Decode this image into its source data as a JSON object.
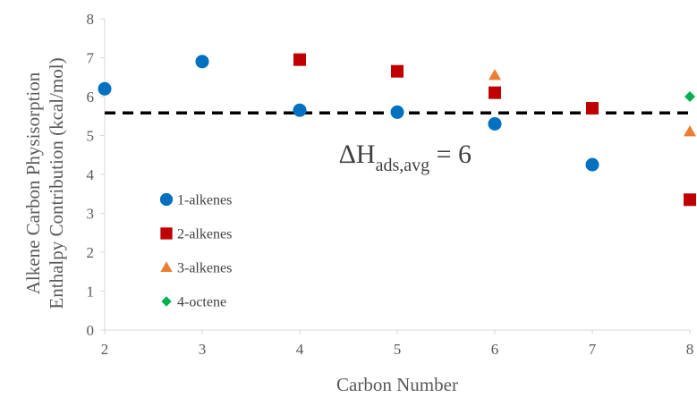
{
  "chart_data": {
    "type": "scatter",
    "title": "",
    "xlabel": "Carbon Number",
    "ylabel_lines": [
      "Alkene Carbon Physisorption",
      "Enthalpy Contribution (kcal/mol)"
    ],
    "xlim": [
      2,
      8
    ],
    "ylim": [
      0,
      8
    ],
    "xticks": [
      2,
      3,
      4,
      5,
      6,
      7,
      8
    ],
    "yticks": [
      0,
      1,
      2,
      3,
      4,
      5,
      6,
      7,
      8
    ],
    "grid": false,
    "legend_position": "left-bottom",
    "series": [
      {
        "name": "1-alkenes",
        "marker": "circle",
        "color": "#0070C0",
        "x": [
          2,
          3,
          4,
          5,
          6,
          7
        ],
        "y": [
          6.2,
          6.9,
          5.65,
          5.6,
          5.3,
          4.25
        ]
      },
      {
        "name": "2-alkenes",
        "marker": "square",
        "color": "#C00000",
        "x": [
          4,
          5,
          6,
          7,
          8
        ],
        "y": [
          6.95,
          6.65,
          6.1,
          5.7,
          3.35
        ]
      },
      {
        "name": "3-alkenes",
        "marker": "triangle",
        "color": "#ED7D31",
        "x": [
          6,
          8
        ],
        "y": [
          6.55,
          5.1
        ]
      },
      {
        "name": "4-octene",
        "marker": "diamond",
        "color": "#00B050",
        "x": [
          8
        ],
        "y": [
          6.0
        ]
      }
    ],
    "reference_line": {
      "y": 5.58,
      "style": "dashed",
      "color": "#000000"
    },
    "annotation": {
      "main": "ΔH",
      "subscript": "ads,avg",
      "suffix": " = 6",
      "x": 4.4,
      "y": 4.3
    }
  }
}
